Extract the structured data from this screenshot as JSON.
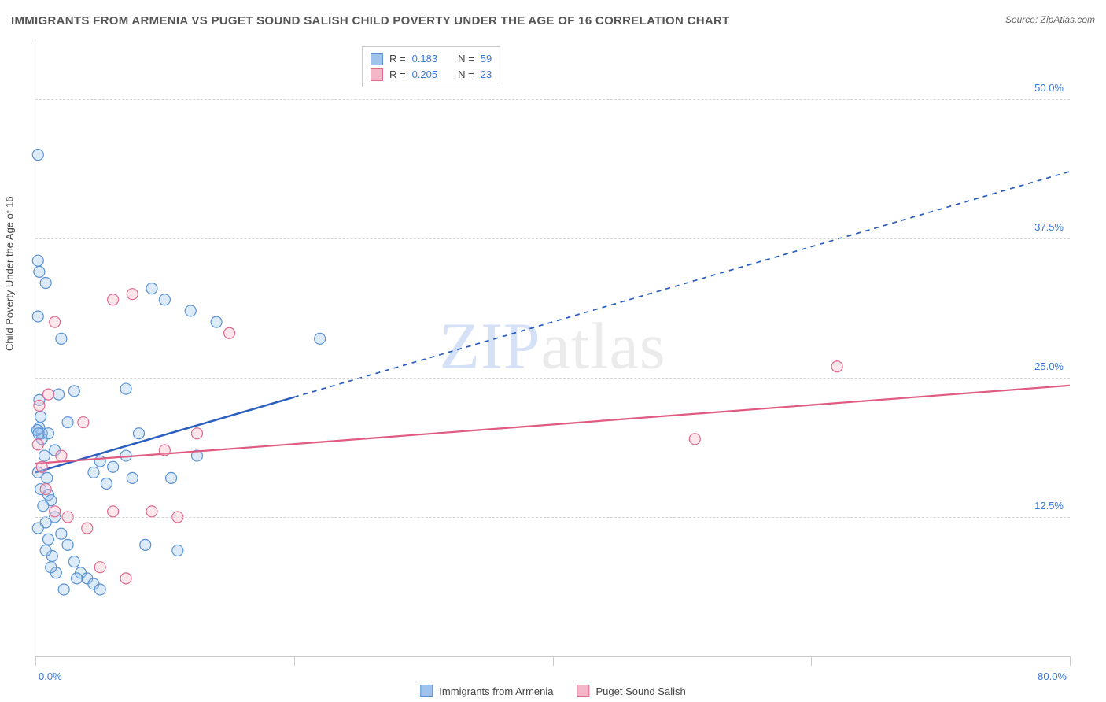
{
  "title": "IMMIGRANTS FROM ARMENIA VS PUGET SOUND SALISH CHILD POVERTY UNDER THE AGE OF 16 CORRELATION CHART",
  "source": "Source: ZipAtlas.com",
  "watermark_a": "ZIP",
  "watermark_b": "atlas",
  "y_axis_title": "Child Poverty Under the Age of 16",
  "chart": {
    "type": "scatter",
    "xlim": [
      0,
      80
    ],
    "ylim": [
      0,
      55
    ],
    "x_ticks": [
      0,
      20,
      40,
      60,
      80
    ],
    "y_ticks": [
      12.5,
      25.0,
      37.5,
      50.0
    ],
    "x_tick_labels": {
      "min": "0.0%",
      "max": "80.0%"
    },
    "y_tick_labels": [
      "12.5%",
      "25.0%",
      "37.5%",
      "50.0%"
    ],
    "grid_color": "#d5d5d5",
    "axis_color": "#cccccc",
    "background_color": "#ffffff",
    "marker_radius": 7,
    "series": [
      {
        "name": "Immigrants from Armenia",
        "fill": "#9fc3ec",
        "stroke": "#5a93d6",
        "R": "0.183",
        "N": "59",
        "trend": {
          "x1": 0,
          "y1": 16.5,
          "x2": 80,
          "y2": 43.5,
          "solid_until_x": 20,
          "color": "#2b5fbf",
          "width": 2.5
        },
        "points": [
          [
            0.2,
            45.0
          ],
          [
            0.3,
            34.5
          ],
          [
            0.8,
            33.5
          ],
          [
            0.2,
            30.5
          ],
          [
            2.0,
            28.5
          ],
          [
            0.3,
            23.0
          ],
          [
            1.8,
            23.5
          ],
          [
            3.0,
            23.8
          ],
          [
            5.0,
            17.5
          ],
          [
            7.0,
            24.0
          ],
          [
            12.0,
            31.0
          ],
          [
            12.5,
            18.0
          ],
          [
            14.0,
            30.0
          ],
          [
            22.0,
            28.5
          ],
          [
            8.0,
            20.0
          ],
          [
            9.0,
            33.0
          ],
          [
            10.0,
            32.0
          ],
          [
            0.5,
            20.0
          ],
          [
            0.7,
            18.0
          ],
          [
            0.9,
            16.0
          ],
          [
            1.0,
            14.5
          ],
          [
            1.2,
            14.0
          ],
          [
            1.5,
            12.5
          ],
          [
            2.0,
            11.0
          ],
          [
            2.5,
            10.0
          ],
          [
            3.0,
            8.5
          ],
          [
            3.5,
            7.5
          ],
          [
            4.0,
            7.0
          ],
          [
            4.5,
            6.5
          ],
          [
            5.0,
            6.0
          ],
          [
            6.0,
            17.0
          ],
          [
            0.2,
            16.5
          ],
          [
            0.4,
            15.0
          ],
          [
            0.6,
            13.5
          ],
          [
            0.8,
            12.0
          ],
          [
            1.0,
            10.5
          ],
          [
            1.3,
            9.0
          ],
          [
            1.6,
            7.5
          ],
          [
            0.3,
            20.5
          ],
          [
            0.5,
            19.5
          ],
          [
            2.5,
            21.0
          ],
          [
            4.5,
            16.5
          ],
          [
            5.5,
            15.5
          ],
          [
            7.5,
            16.0
          ],
          [
            10.5,
            16.0
          ],
          [
            7.0,
            18.0
          ],
          [
            0.4,
            21.5
          ],
          [
            1.0,
            20.0
          ],
          [
            1.5,
            18.5
          ],
          [
            0.2,
            11.5
          ],
          [
            0.8,
            9.5
          ],
          [
            1.2,
            8.0
          ],
          [
            2.2,
            6.0
          ],
          [
            3.2,
            7.0
          ],
          [
            8.5,
            10.0
          ],
          [
            11.0,
            9.5
          ],
          [
            0.2,
            35.5
          ],
          [
            0.15,
            20.3
          ],
          [
            0.25,
            20.0
          ]
        ]
      },
      {
        "name": "Puget Sound Salish",
        "fill": "#f3b7c8",
        "stroke": "#e06a8e",
        "R": "0.205",
        "N": "23",
        "trend": {
          "x1": 0,
          "y1": 17.3,
          "x2": 80,
          "y2": 24.3,
          "solid_until_x": 80,
          "color": "#e05a82",
          "width": 2.2
        },
        "points": [
          [
            1.5,
            30.0
          ],
          [
            6.0,
            32.0
          ],
          [
            7.5,
            32.5
          ],
          [
            15.0,
            29.0
          ],
          [
            1.0,
            23.5
          ],
          [
            3.7,
            21.0
          ],
          [
            0.3,
            22.5
          ],
          [
            2.0,
            18.0
          ],
          [
            0.2,
            19.0
          ],
          [
            0.5,
            17.0
          ],
          [
            0.8,
            15.0
          ],
          [
            1.5,
            13.0
          ],
          [
            2.5,
            12.5
          ],
          [
            4.0,
            11.5
          ],
          [
            6.0,
            13.0
          ],
          [
            9.0,
            13.0
          ],
          [
            11.0,
            12.5
          ],
          [
            12.5,
            20.0
          ],
          [
            51.0,
            19.5
          ],
          [
            62.0,
            26.0
          ],
          [
            5.0,
            8.0
          ],
          [
            7.0,
            7.0
          ],
          [
            10.0,
            18.5
          ]
        ]
      }
    ]
  },
  "legend_top": {
    "R_label": "R  = ",
    "N_label": "N  = "
  }
}
